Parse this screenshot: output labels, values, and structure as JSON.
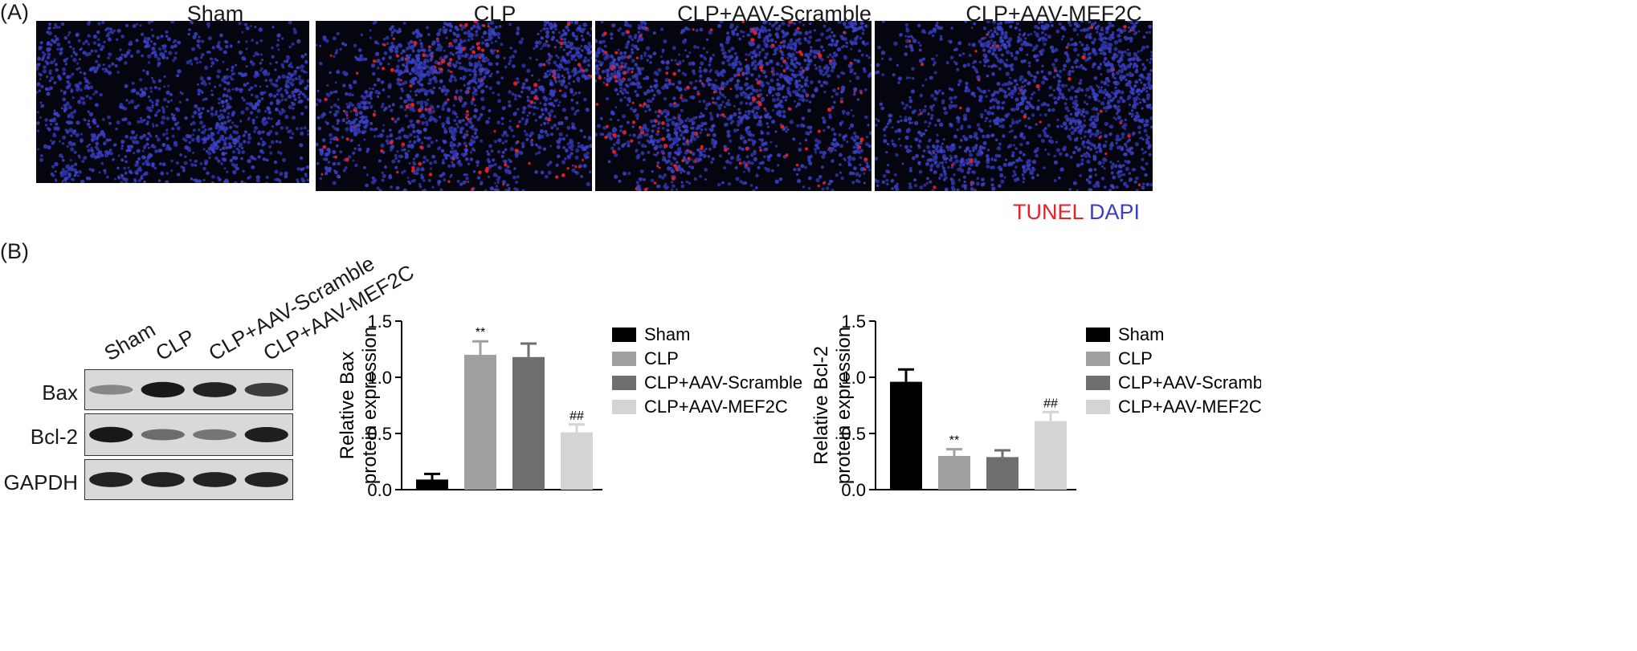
{
  "panel_a": {
    "letter": "(A)",
    "images": [
      {
        "title": "Sham",
        "tunel_density": 0.0
      },
      {
        "title": "CLP",
        "tunel_density": 0.09
      },
      {
        "title": "CLP+AAV-Scramble",
        "tunel_density": 0.08
      },
      {
        "title": "CLP+AAV-MEF2C",
        "tunel_density": 0.025
      }
    ],
    "stain_tunel": "TUNEL",
    "stain_dapi": "DAPI",
    "tunel_color": "#e8202a",
    "dapi_color": "#3a3fc0"
  },
  "panel_b": {
    "letter": "(B)",
    "blot": {
      "lanes": [
        "Sham",
        "CLP",
        "CLP+AAV-Scramble",
        "CLP+AAV-MEF2C"
      ],
      "rows": [
        {
          "label": "Bax",
          "intensities": [
            0.35,
            0.95,
            0.9,
            0.75
          ]
        },
        {
          "label": "Bcl-2",
          "intensities": [
            0.95,
            0.5,
            0.45,
            0.92
          ]
        },
        {
          "label": "GAPDH",
          "intensities": [
            0.9,
            0.9,
            0.9,
            0.9
          ]
        }
      ]
    }
  },
  "legend": {
    "entries": [
      "Sham",
      "CLP",
      "CLP+AAV-Scramble",
      "CLP+AAV-MEF2C"
    ],
    "colors": [
      "#000000",
      "#a0a0a0",
      "#6e6e6e",
      "#d4d4d4"
    ]
  },
  "chart_data": [
    {
      "type": "bar",
      "categories": [
        "Sham",
        "CLP",
        "CLP+AAV-Scramble",
        "CLP+AAV-MEF2C"
      ],
      "values": [
        0.09,
        1.2,
        1.18,
        0.51
      ],
      "errors": [
        0.05,
        0.12,
        0.12,
        0.07
      ],
      "annotations": [
        "",
        "**",
        "",
        "##"
      ],
      "ylabel_line1": "Relative Bax",
      "ylabel_line2": "protein expression",
      "ylim": [
        0,
        1.5
      ],
      "yticks": [
        "0.0",
        "0.5",
        "1.0",
        "1.5"
      ],
      "legend_position": "right"
    },
    {
      "type": "bar",
      "categories": [
        "Sham",
        "CLP",
        "CLP+AAV-Scramble",
        "CLP+AAV-MEF2C"
      ],
      "values": [
        0.96,
        0.3,
        0.29,
        0.61
      ],
      "errors": [
        0.11,
        0.06,
        0.06,
        0.08
      ],
      "annotations": [
        "",
        "**",
        "",
        "##"
      ],
      "ylabel_line1": "Relative Bcl-2",
      "ylabel_line2": "protein expression",
      "ylim": [
        0,
        1.5
      ],
      "yticks": [
        "0.0",
        "0.5",
        "1.0",
        "1.5"
      ],
      "legend_position": "right"
    }
  ]
}
